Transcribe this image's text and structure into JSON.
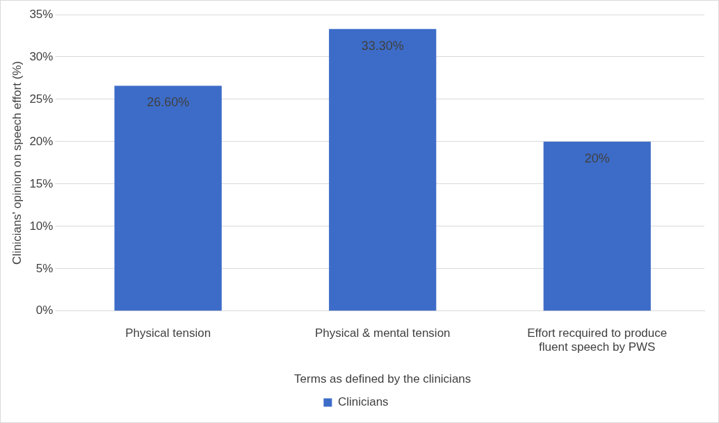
{
  "chart_data": {
    "type": "bar",
    "xlabel": "Terms as defined by the clinicians",
    "ylabel": "Clinicians' opinion on speech effort (%)",
    "categories": [
      "Physical tension",
      "Physical & mental tension",
      "Effort recquired to produce fluent speech by PWS"
    ],
    "series": [
      {
        "name": "Clinicians",
        "color": "#3d6cc8",
        "values": [
          26.6,
          33.3,
          20
        ],
        "value_labels": [
          "26.60%",
          "33.30%",
          "20%"
        ]
      }
    ],
    "ylim": [
      0,
      35
    ],
    "yticks": [
      {
        "value": 0,
        "label": "0%"
      },
      {
        "value": 5,
        "label": "5%"
      },
      {
        "value": 10,
        "label": "10%"
      },
      {
        "value": 15,
        "label": "15%"
      },
      {
        "value": 20,
        "label": "20%"
      },
      {
        "value": 25,
        "label": "25%"
      },
      {
        "value": 30,
        "label": "30%"
      },
      {
        "value": 35,
        "label": "35%"
      }
    ],
    "grid": "y",
    "legend": "bottom"
  }
}
